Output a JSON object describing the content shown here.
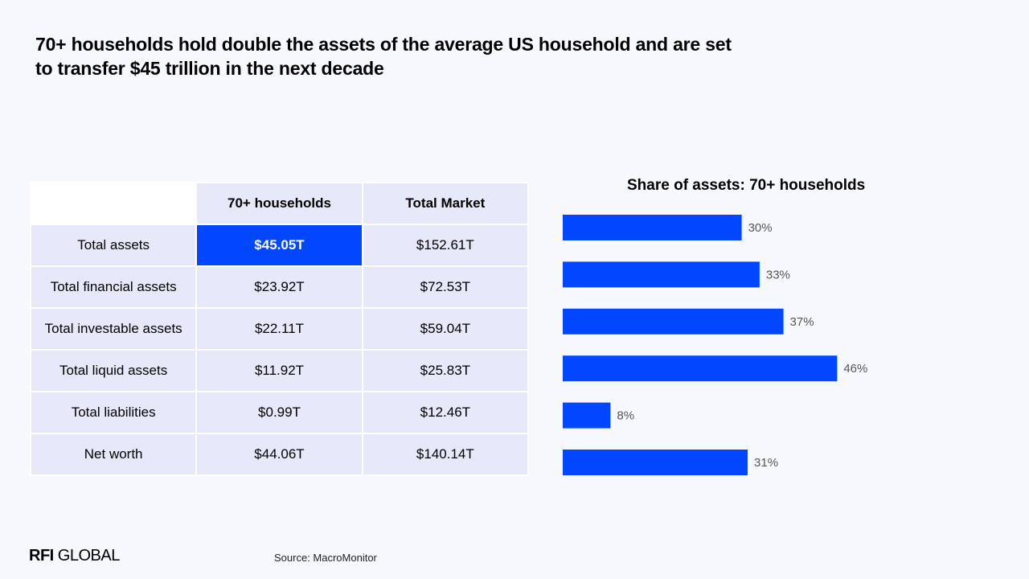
{
  "title": {
    "line1": "70+ households hold double the assets of the average US household and are set",
    "line2": "to transfer $45 trillion in the next decade"
  },
  "table": {
    "headers": [
      "",
      "70+ households",
      "Total Market"
    ],
    "rows": [
      {
        "label": "Total assets",
        "h70": "$45.05T",
        "total": "$152.61T"
      },
      {
        "label": "Total financial assets",
        "h70": "$23.92T",
        "total": "$72.53T"
      },
      {
        "label": "Total investable assets",
        "h70": "$22.11T",
        "total": "$59.04T"
      },
      {
        "label": "Total liquid assets",
        "h70": "$11.92T",
        "total": "$25.83T"
      },
      {
        "label": "Total liabilities",
        "h70": "$0.99T",
        "total": "$12.46T"
      },
      {
        "label": "Net worth",
        "h70": "$44.06T",
        "total": "$140.14T"
      }
    ]
  },
  "chart_data": {
    "type": "bar",
    "orientation": "horizontal",
    "title": "Share of assets: 70+ households",
    "categories": [
      "Total assets",
      "Total financial assets",
      "Total investable assets",
      "Total liquid assets",
      "Total liabilities",
      "Net worth"
    ],
    "values": [
      30,
      33,
      37,
      46,
      8,
      31
    ],
    "value_labels": [
      "30%",
      "33%",
      "37%",
      "46%",
      "8%",
      "31%"
    ],
    "unit": "%",
    "bar_color": "#0047ff",
    "grid": false,
    "legend": "none"
  },
  "footer": {
    "logo_bold": "RFI",
    "logo_rest": " GLOBAL",
    "source": "Source: MacroMonitor"
  },
  "colors": {
    "accent": "#0047ff",
    "cell": "#e7e8f9",
    "background": "#f7f8fd"
  }
}
